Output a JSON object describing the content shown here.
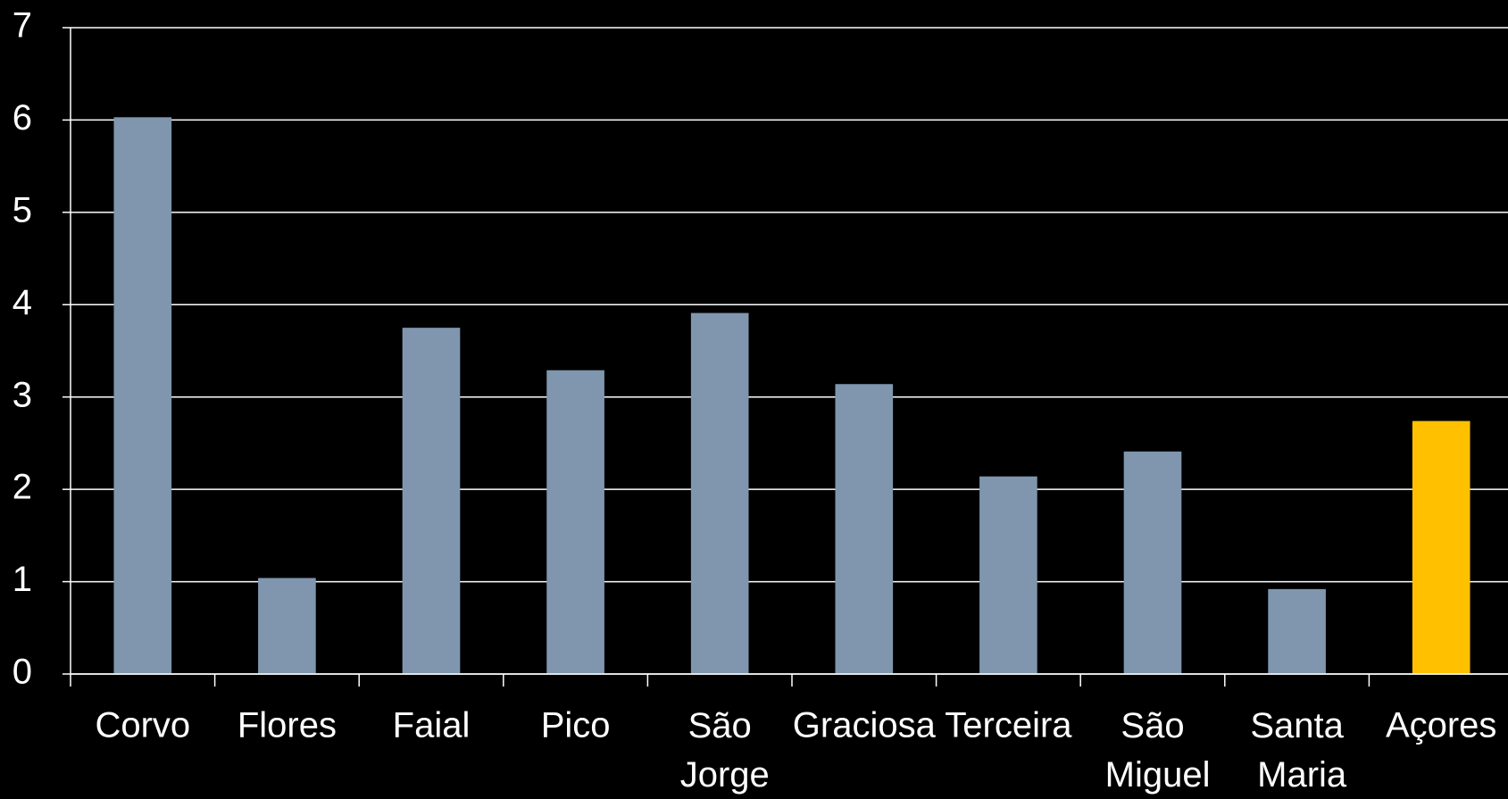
{
  "chart_data": {
    "type": "bar",
    "categories": [
      "Corvo",
      "Flores",
      "Faial",
      "Pico",
      "São Jorge",
      "Graciosa",
      "Terceira",
      "São Miguel",
      "Santa Maria",
      "Açores"
    ],
    "values": [
      6.03,
      1.04,
      3.75,
      3.29,
      3.91,
      3.14,
      2.14,
      2.41,
      0.92,
      2.74
    ],
    "colors": [
      "#7f96ae",
      "#7f96ae",
      "#7f96ae",
      "#7f96ae",
      "#7f96ae",
      "#7f96ae",
      "#7f96ae",
      "#7f96ae",
      "#7f96ae",
      "#ffc000"
    ],
    "ylim": [
      0,
      7
    ],
    "yticks": [
      0,
      1,
      2,
      3,
      4,
      5,
      6,
      7
    ],
    "grid": true
  }
}
